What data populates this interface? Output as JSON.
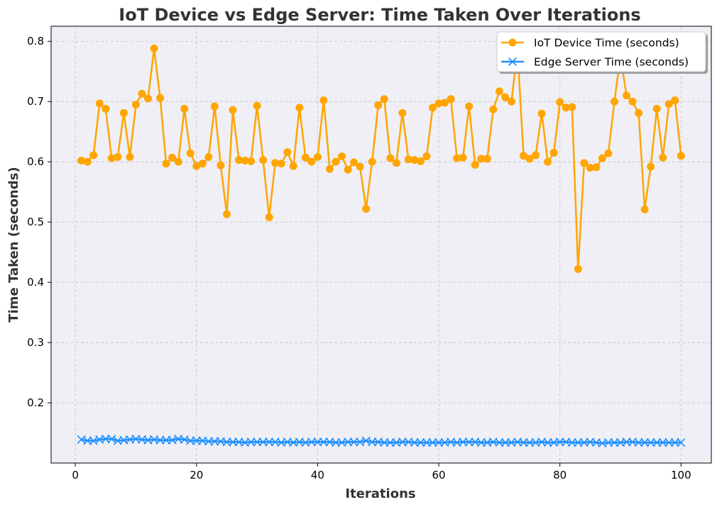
{
  "chart_data": {
    "type": "line",
    "title": "IoT Device vs Edge Server: Time Taken Over Iterations",
    "xlabel": "Iterations",
    "ylabel": "Time Taken (seconds)",
    "xlim": [
      -4,
      105
    ],
    "ylim": [
      0.1,
      0.825
    ],
    "xticks": [
      0,
      20,
      40,
      60,
      80,
      100
    ],
    "yticks": [
      0.2,
      0.3,
      0.4,
      0.5,
      0.6,
      0.7,
      0.8
    ],
    "grid": true,
    "legend_position": "top-right",
    "x": [
      1,
      2,
      3,
      4,
      5,
      6,
      7,
      8,
      9,
      10,
      11,
      12,
      13,
      14,
      15,
      16,
      17,
      18,
      19,
      20,
      21,
      22,
      23,
      24,
      25,
      26,
      27,
      28,
      29,
      30,
      31,
      32,
      33,
      34,
      35,
      36,
      37,
      38,
      39,
      40,
      41,
      42,
      43,
      44,
      45,
      46,
      47,
      48,
      49,
      50,
      51,
      52,
      53,
      54,
      55,
      56,
      57,
      58,
      59,
      60,
      61,
      62,
      63,
      64,
      65,
      66,
      67,
      68,
      69,
      70,
      71,
      72,
      73,
      74,
      75,
      76,
      77,
      78,
      79,
      80,
      81,
      82,
      83,
      84,
      85,
      86,
      87,
      88,
      89,
      90,
      91,
      92,
      93,
      94,
      95,
      96,
      97,
      98,
      99,
      100
    ],
    "series": [
      {
        "name": "IoT Device Time (seconds)",
        "color": "#FFA500",
        "marker": "circle",
        "values": [
          0.602,
          0.6,
          0.611,
          0.697,
          0.688,
          0.606,
          0.608,
          0.681,
          0.608,
          0.695,
          0.713,
          0.705,
          0.788,
          0.706,
          0.597,
          0.607,
          0.6,
          0.688,
          0.614,
          0.593,
          0.597,
          0.608,
          0.692,
          0.594,
          0.513,
          0.686,
          0.603,
          0.602,
          0.601,
          0.693,
          0.603,
          0.508,
          0.598,
          0.597,
          0.616,
          0.593,
          0.69,
          0.607,
          0.6,
          0.608,
          0.702,
          0.588,
          0.6,
          0.609,
          0.587,
          0.599,
          0.592,
          0.522,
          0.6,
          0.694,
          0.704,
          0.606,
          0.598,
          0.681,
          0.604,
          0.603,
          0.601,
          0.609,
          0.69,
          0.697,
          0.698,
          0.704,
          0.606,
          0.607,
          0.692,
          0.595,
          0.605,
          0.605,
          0.687,
          0.717,
          0.707,
          0.7,
          0.785,
          0.61,
          0.605,
          0.611,
          0.68,
          0.6,
          0.615,
          0.699,
          0.69,
          0.691,
          0.422,
          0.598,
          0.59,
          0.591,
          0.606,
          0.614,
          0.7,
          0.776,
          0.71,
          0.7,
          0.681,
          0.521,
          0.592,
          0.688,
          0.607,
          0.696,
          0.702,
          0.61
        ]
      },
      {
        "name": "Edge Server Time (seconds)",
        "color": "#1E90FF",
        "marker": "x",
        "values": [
          0.139,
          0.137,
          0.137,
          0.139,
          0.14,
          0.14,
          0.137,
          0.138,
          0.139,
          0.14,
          0.139,
          0.138,
          0.139,
          0.138,
          0.138,
          0.138,
          0.14,
          0.139,
          0.137,
          0.137,
          0.137,
          0.136,
          0.136,
          0.136,
          0.135,
          0.135,
          0.135,
          0.134,
          0.135,
          0.135,
          0.135,
          0.135,
          0.135,
          0.134,
          0.135,
          0.134,
          0.135,
          0.134,
          0.135,
          0.135,
          0.135,
          0.135,
          0.134,
          0.134,
          0.135,
          0.135,
          0.135,
          0.137,
          0.135,
          0.135,
          0.134,
          0.134,
          0.134,
          0.135,
          0.135,
          0.134,
          0.134,
          0.134,
          0.134,
          0.134,
          0.134,
          0.135,
          0.134,
          0.135,
          0.135,
          0.135,
          0.134,
          0.134,
          0.135,
          0.134,
          0.134,
          0.134,
          0.135,
          0.134,
          0.134,
          0.134,
          0.135,
          0.134,
          0.134,
          0.135,
          0.135,
          0.134,
          0.134,
          0.134,
          0.135,
          0.134,
          0.133,
          0.134,
          0.134,
          0.134,
          0.135,
          0.135,
          0.134,
          0.134,
          0.134,
          0.134,
          0.134,
          0.134,
          0.134,
          0.134
        ]
      }
    ]
  },
  "style": {
    "plot_background": "#EFEFF5",
    "grid_color": "#C2C2C8",
    "text_color": "#333333"
  }
}
